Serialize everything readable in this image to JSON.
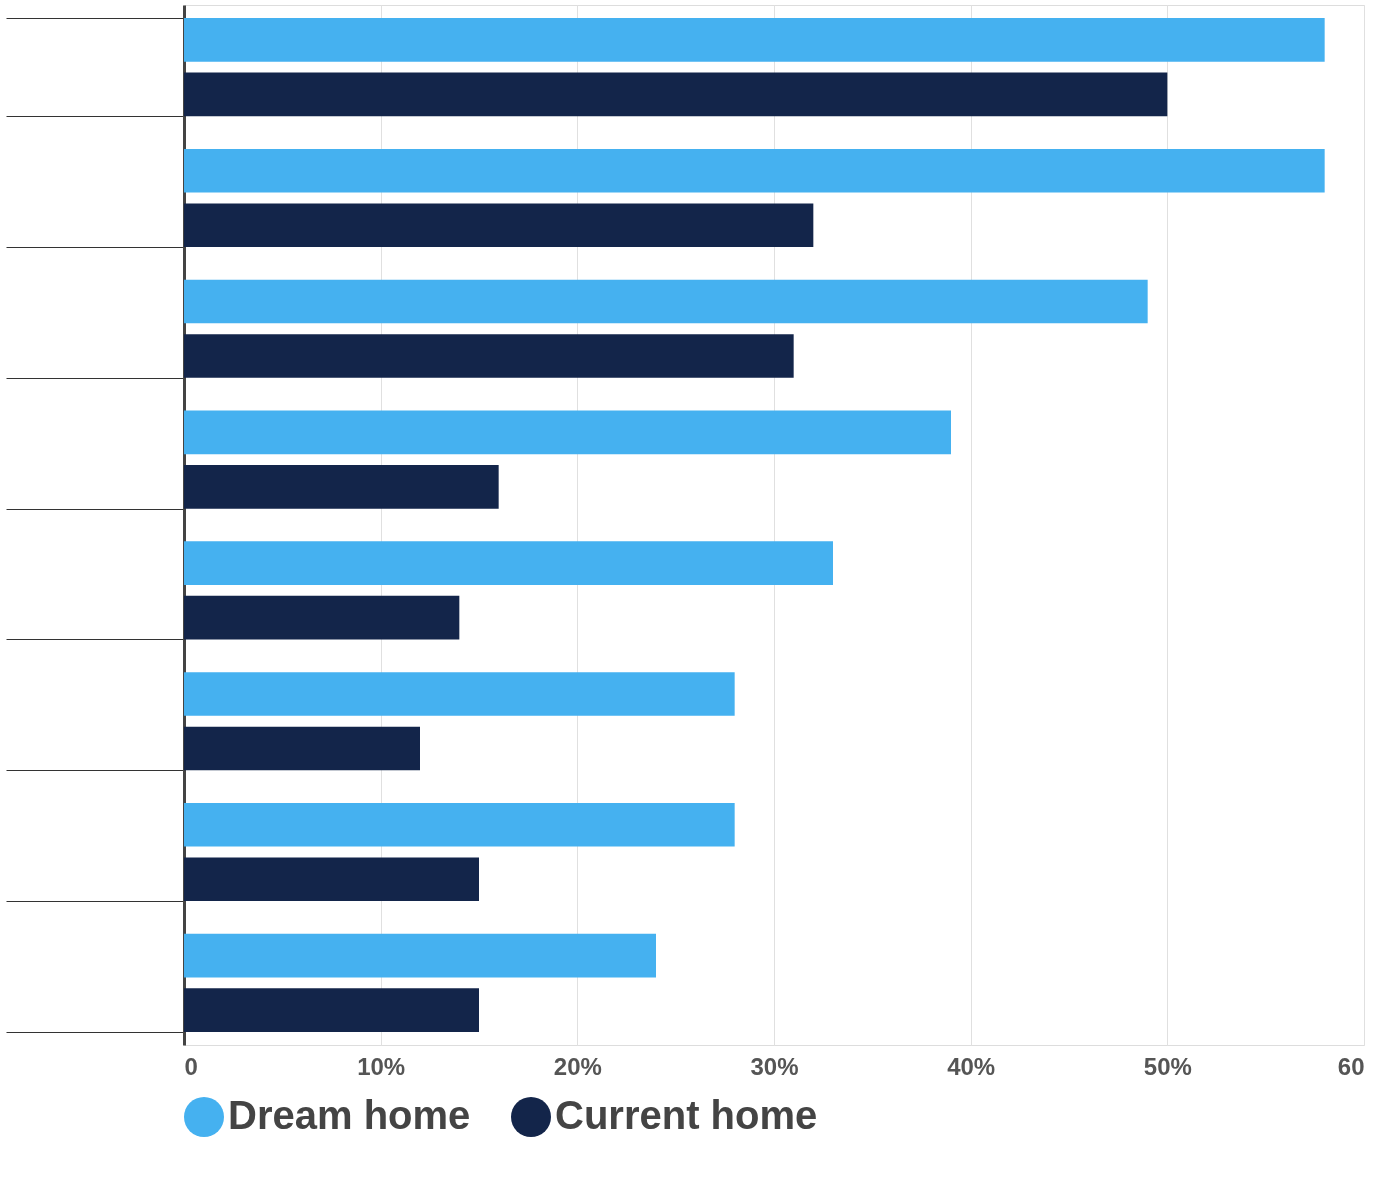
{
  "chart_data": {
    "type": "bar",
    "orientation": "horizontal",
    "categories": [
      null,
      null,
      null,
      null,
      null,
      null,
      null,
      null
    ],
    "series": [
      {
        "name": "Dream home",
        "color": "#45b1f0",
        "values": [
          58,
          58,
          49,
          39,
          33,
          28,
          28,
          24
        ]
      },
      {
        "name": "Current home",
        "color": "#13254a",
        "values": [
          50,
          32,
          31,
          16,
          14,
          12,
          15,
          15
        ]
      }
    ],
    "xlim": [
      0,
      60
    ],
    "xticks": [
      0,
      {
        "value": 10,
        "label": "10%"
      },
      {
        "value": 20,
        "label": "20%"
      },
      {
        "value": 30,
        "label": "30%"
      },
      {
        "value": 40,
        "label": "40%"
      },
      {
        "value": 50,
        "label": "50%"
      },
      60
    ],
    "grid": "x",
    "legend": "bottom",
    "tick_labels": "x"
  }
}
